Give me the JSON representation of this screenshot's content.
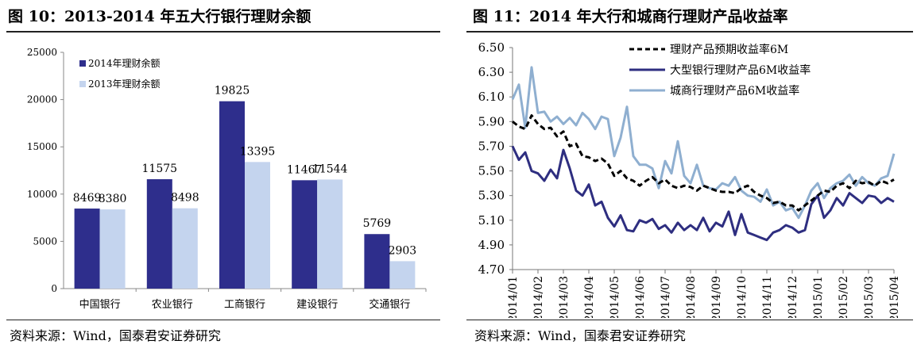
{
  "left": {
    "title": "图 10：2013-2014 年五大行银行理财余额",
    "source": "资料来源：Wind，国泰君安证券研究",
    "chart_data": {
      "type": "bar",
      "title": "",
      "categories": [
        "中国银行",
        "农业银行",
        "工商银行",
        "建设银行",
        "交通银行"
      ],
      "series": [
        {
          "name": "2014年理财余额",
          "color": "#2e2e8c",
          "values": [
            8469,
            11575,
            19825,
            11467,
            5769
          ]
        },
        {
          "name": "2013年理财余额",
          "color": "#c4d4ee",
          "values": [
            8380,
            8498,
            13395,
            11544,
            2903
          ]
        }
      ],
      "yticks": [
        0,
        5000,
        10000,
        15000,
        20000,
        25000
      ],
      "ylim": [
        0,
        25000
      ],
      "legend_position": "top-left"
    }
  },
  "right": {
    "title": "图 11：2014 年大行和城商行理财产品收益率",
    "source": "资料来源：Wind，国泰君安证券研究",
    "chart_data": {
      "type": "line",
      "title": "",
      "x_ticks": [
        "2014/01",
        "2014/02",
        "2014/03",
        "2014/04",
        "2014/05",
        "2014/06",
        "2014/07",
        "2014/08",
        "2014/09",
        "2014/10",
        "2014/11",
        "2014/12",
        "2015/01",
        "2015/02",
        "2015/03",
        "2015/04"
      ],
      "tick_label_truncated_left": true,
      "ylim": [
        4.7,
        6.5
      ],
      "yticks": [
        "4.70",
        "4.90",
        "5.10",
        "5.30",
        "5.50",
        "5.70",
        "5.90",
        "6.10",
        "6.30",
        "6.50"
      ],
      "legend_position": "top",
      "series": [
        {
          "name": "理财产品预期收益率6M",
          "color": "#000000",
          "style": "dashed",
          "values": [
            5.9,
            5.86,
            5.84,
            5.95,
            5.88,
            5.84,
            5.85,
            5.78,
            5.82,
            5.7,
            5.72,
            5.62,
            5.61,
            5.58,
            5.6,
            5.56,
            5.46,
            5.5,
            5.44,
            5.42,
            5.38,
            5.42,
            5.45,
            5.4,
            5.43,
            5.38,
            5.36,
            5.38,
            5.37,
            5.34,
            5.38,
            5.36,
            5.34,
            5.33,
            5.33,
            5.32,
            5.36,
            5.38,
            5.33,
            5.3,
            5.28,
            5.24,
            5.25,
            5.22,
            5.22,
            5.18,
            5.22,
            5.26,
            5.3,
            5.34,
            5.33,
            5.38,
            5.4,
            5.36,
            5.42,
            5.4,
            5.41,
            5.38,
            5.42,
            5.4,
            5.43
          ]
        },
        {
          "name": "大型银行理财产品6M收益率",
          "color": "#2e2e80",
          "style": "solid",
          "values": [
            5.7,
            5.59,
            5.65,
            5.5,
            5.48,
            5.42,
            5.51,
            5.44,
            5.67,
            5.52,
            5.34,
            5.3,
            5.39,
            5.22,
            5.25,
            5.12,
            5.05,
            5.14,
            5.02,
            5.01,
            5.1,
            5.08,
            5.11,
            5.03,
            5.06,
            5.0,
            5.08,
            5.02,
            5.06,
            5.02,
            5.12,
            5.01,
            5.08,
            5.05,
            5.17,
            4.98,
            5.15,
            5.0,
            4.98,
            4.96,
            4.94,
            5.0,
            5.02,
            5.06,
            5.04,
            5.0,
            5.02,
            5.23,
            5.3,
            5.12,
            5.18,
            5.28,
            5.22,
            5.32,
            5.28,
            5.24,
            5.3,
            5.29,
            5.24,
            5.28,
            5.25
          ]
        },
        {
          "name": "城商行理财产品6M收益率",
          "color": "#8fafd0",
          "style": "solid",
          "values": [
            6.08,
            6.2,
            5.85,
            6.34,
            5.97,
            5.98,
            5.9,
            5.94,
            5.88,
            5.93,
            5.87,
            5.97,
            5.92,
            5.84,
            5.94,
            5.92,
            5.62,
            5.77,
            6.02,
            5.62,
            5.55,
            5.55,
            5.52,
            5.36,
            5.58,
            5.48,
            5.74,
            5.46,
            5.4,
            5.55,
            5.38,
            5.36,
            5.35,
            5.4,
            5.38,
            5.45,
            5.34,
            5.3,
            5.29,
            5.25,
            5.35,
            5.22,
            5.25,
            5.18,
            5.2,
            5.12,
            5.22,
            5.34,
            5.4,
            5.28,
            5.36,
            5.4,
            5.42,
            5.47,
            5.38,
            5.45,
            5.4,
            5.38,
            5.44,
            5.46,
            5.64
          ]
        }
      ]
    }
  }
}
